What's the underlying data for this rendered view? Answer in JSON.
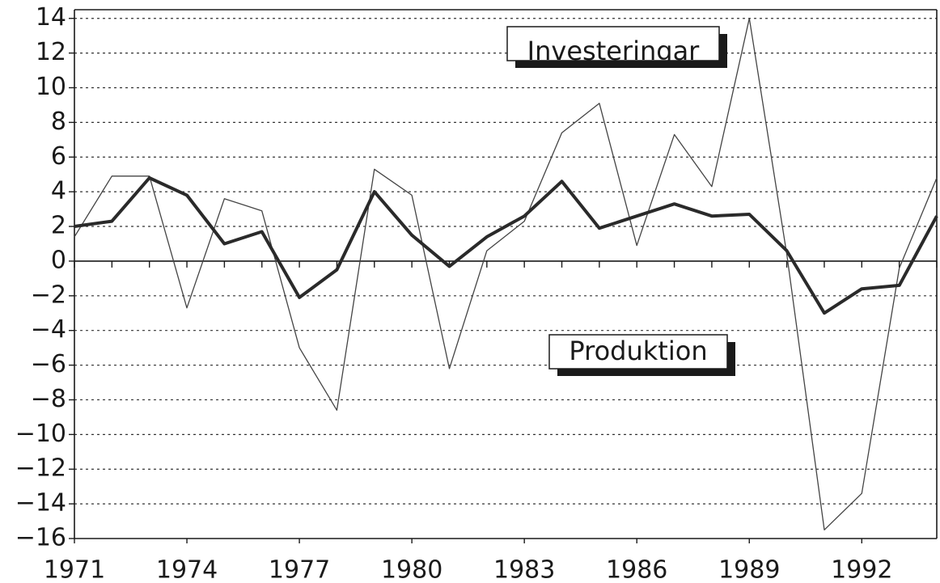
{
  "chart_data": {
    "type": "line",
    "title": "",
    "xlabel": "",
    "ylabel": "",
    "x": [
      1971,
      1972,
      1973,
      1974,
      1975,
      1976,
      1977,
      1978,
      1979,
      1980,
      1981,
      1982,
      1983,
      1984,
      1985,
      1986,
      1987,
      1988,
      1989,
      1990,
      1991,
      1992,
      1993,
      1994
    ],
    "xticks": [
      "1971",
      "1974",
      "1977",
      "1980",
      "1983",
      "1986",
      "1989",
      "1992"
    ],
    "yticks": [
      14,
      12,
      10,
      8,
      6,
      4,
      2,
      0,
      -2,
      -4,
      -6,
      -8,
      -10,
      -12,
      -14,
      -16
    ],
    "ytick_labels": [
      "14",
      "12",
      "10",
      "8",
      "6",
      "4",
      "2",
      "0",
      "−2",
      "−4",
      "−6",
      "−8",
      "−10",
      "−12",
      "−14",
      "−16"
    ],
    "xlim": [
      1971,
      1994
    ],
    "ylim": [
      -16,
      14.5
    ],
    "grid": true,
    "series": [
      {
        "name": "Investeringar",
        "color": "#444444",
        "weight": "thin",
        "values": [
          1.4,
          4.9,
          4.9,
          -2.7,
          3.6,
          2.9,
          -5.0,
          -8.6,
          5.3,
          3.8,
          -6.2,
          0.6,
          2.3,
          7.4,
          9.1,
          0.9,
          7.3,
          4.3,
          14.0,
          0.4,
          -15.5,
          -13.4,
          -0.4,
          4.8
        ]
      },
      {
        "name": "Produktion",
        "color": "#2a2a2a",
        "weight": "thick",
        "values": [
          2.0,
          2.3,
          4.8,
          3.8,
          1.0,
          1.7,
          -2.1,
          -0.5,
          4.0,
          1.5,
          -0.3,
          1.4,
          2.6,
          4.6,
          1.9,
          2.6,
          3.3,
          2.6,
          2.7,
          0.6,
          -3.0,
          -1.6,
          -1.4,
          2.6
        ]
      }
    ]
  }
}
